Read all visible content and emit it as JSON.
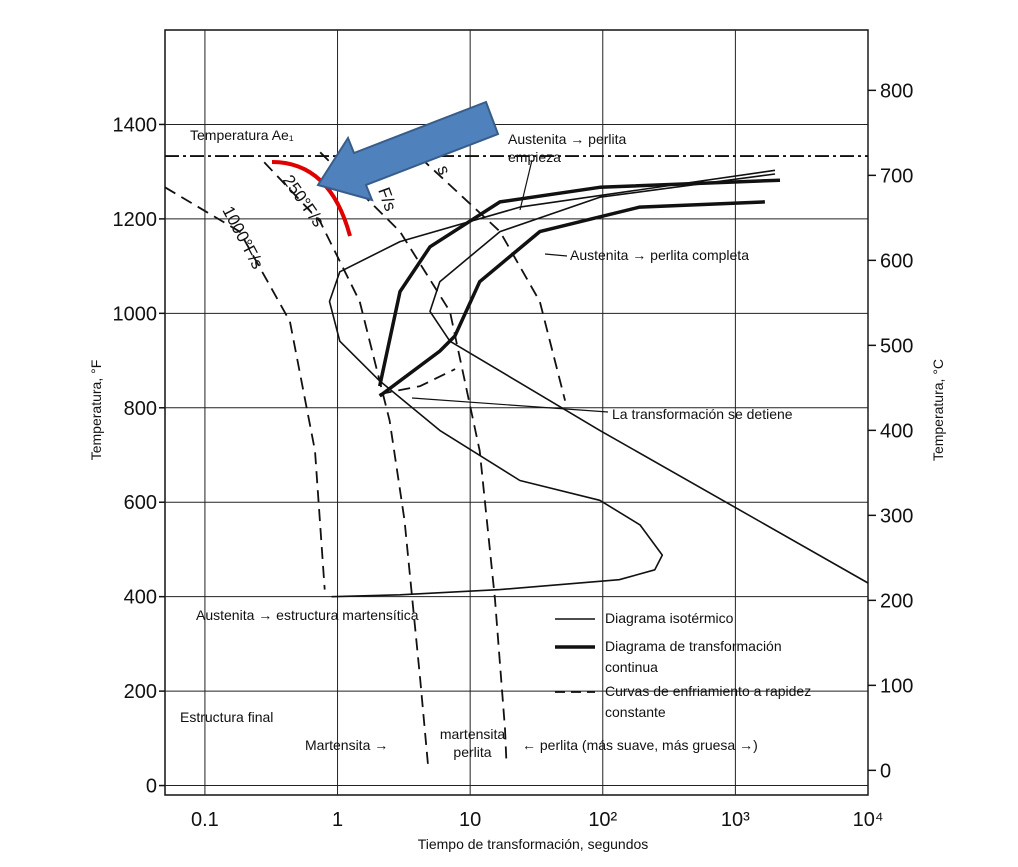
{
  "chart_data": {
    "type": "line",
    "xscale": "log",
    "grid": true,
    "xlabel": "Tiempo de transformación, segundos",
    "ylabel": "Temperatura, °F",
    "y2label": "Temperatura, °C",
    "xlim": [
      0.05,
      10000
    ],
    "xticks": [
      0.1,
      1,
      10,
      {
        "value": 100,
        "label": "10²"
      },
      {
        "value": 1000,
        "label": "10³"
      },
      {
        "value": 10000,
        "label": "10⁴"
      }
    ],
    "ylim": [
      -20,
      1600
    ],
    "yticks": [
      0,
      200,
      400,
      600,
      800,
      1000,
      1200,
      1400
    ],
    "y2lim": [
      -29,
      871
    ],
    "y2ticks": [
      0,
      100,
      200,
      300,
      400,
      500,
      600,
      700,
      800
    ],
    "ae1_line": 1333,
    "legend": "lower right",
    "series": [
      {
        "name": "Diagrama isotérmico",
        "color": "#111111",
        "line_style": "solid",
        "line_width": 1.6,
        "x": [
          1990,
          23.7,
          2.96,
          1.04,
          0.87,
          1.04,
          2.08,
          5.9,
          23.7,
          95,
          191,
          281,
          247,
          133,
          16.8,
          2.96,
          0.9,
          null,
          1990,
          95,
          16.8,
          5.9,
          4.98,
          7.04,
          95,
          10000
        ],
        "values": [
          1303,
          1225,
          1152,
          1088,
          1025,
          941,
          857,
          752,
          646,
          604,
          552,
          488,
          457,
          436,
          415,
          404,
          400,
          null,
          1295,
          1246,
          1173,
          1067,
          1004,
          941,
          752,
          429
        ]
      },
      {
        "name": "Diagrama de transformación continua",
        "color": "#111111",
        "line_style": "solid",
        "line_width": 3.5,
        "x": [
          2.08,
          2.96,
          4.98,
          16.8,
          95,
          2170,
          null,
          2.08,
          5.9,
          7.68,
          11.8,
          33.5,
          190,
          1670
        ],
        "values": [
          846,
          1046,
          1141,
          1236,
          1267,
          1282,
          null,
          825,
          920,
          952,
          1067,
          1173,
          1225,
          1236
        ]
      },
      {
        "name": "Curvas de enfriamiento a rapidez constante",
        "color": "#111111",
        "line_style": "dashed",
        "line_width": 1.8,
        "x": [
          0.05,
          0.183,
          0.437,
          0.676,
          0.8,
          null,
          0.28,
          0.74,
          1.47,
          2.47,
          3.2,
          4.2,
          4.8,
          null,
          0.74,
          2.96,
          7.04,
          11.8,
          15.4,
          18.3,
          18.8,
          null,
          4.2,
          16.8,
          33.5,
          52,
          null,
          2.08,
          4.2,
          7.7
        ],
        "values": [
          1267,
          1173,
          983,
          709,
          415,
          null,
          1320,
          1194,
          1025,
          773,
          562,
          225,
          46,
          null,
          1341,
          1173,
          1004,
          709,
          394,
          120,
          46,
          null,
          1330,
          1173,
          1025,
          815,
          null,
          829,
          846,
          882
        ]
      }
    ],
    "annotations": [
      "Temperatura Ae₁",
      "Austenita → perlita empieza",
      "Austenita → perlita completa",
      "La transformación se detiene",
      "Austenita → estructura martensítica",
      "Estructura final",
      "Martensita →",
      "martensita perlita",
      "← perlita (más suave, más gruesa →)",
      "1000°F/s",
      "250°F/s",
      "F/s",
      "s"
    ]
  }
}
